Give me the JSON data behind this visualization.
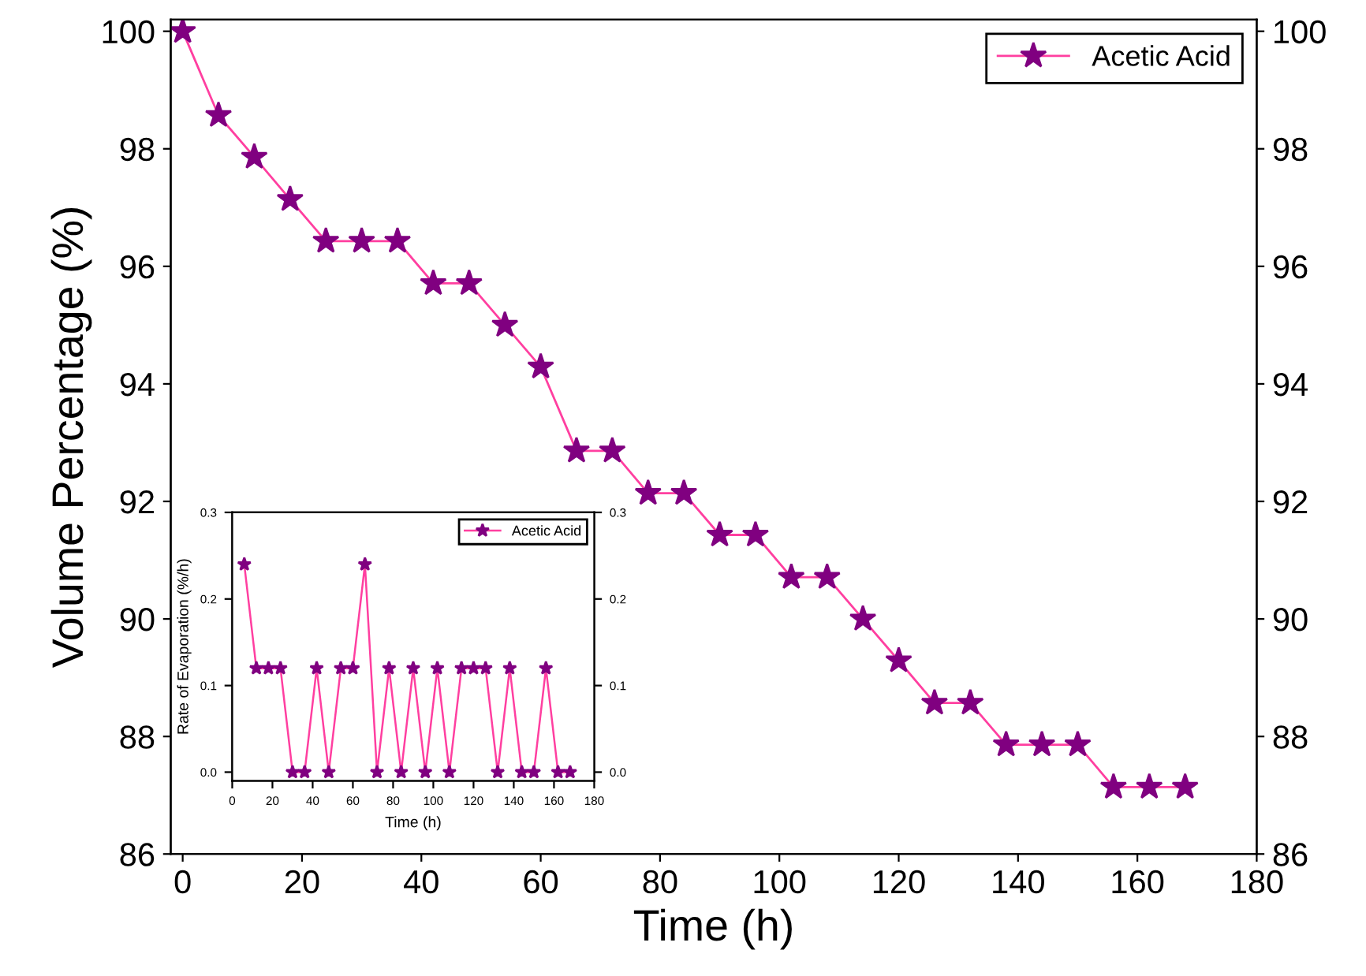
{
  "chart_data": [
    {
      "type": "line",
      "xlabel": "Time (h)",
      "ylabel": "Volume Percentage (%)",
      "x": [
        0,
        6,
        12,
        18,
        24,
        30,
        36,
        42,
        48,
        54,
        60,
        66,
        72,
        78,
        84,
        90,
        96,
        102,
        108,
        114,
        120,
        126,
        132,
        138,
        144,
        150,
        156,
        162,
        168
      ],
      "series": [
        {
          "name": "Acetic Acid",
          "color": "#800080",
          "values": [
            100,
            98.57,
            97.86,
            97.14,
            96.43,
            96.43,
            96.43,
            95.71,
            95.71,
            95.0,
            94.29,
            92.86,
            92.86,
            92.14,
            92.14,
            91.43,
            91.43,
            90.71,
            90.71,
            90.0,
            89.29,
            88.57,
            88.57,
            87.86,
            87.86,
            87.86,
            87.14,
            87.14,
            87.14
          ]
        }
      ],
      "xlim": [
        -2,
        180
      ],
      "xticks": [
        0,
        20,
        40,
        60,
        80,
        100,
        120,
        140,
        160,
        180
      ],
      "ylim": [
        86,
        100.2
      ],
      "yticks": [
        86,
        88,
        90,
        92,
        94,
        96,
        98,
        100
      ],
      "y2lim": [
        86,
        100.2
      ],
      "y2ticks": [
        86,
        88,
        90,
        92,
        94,
        96,
        98,
        100
      ],
      "marker": "star",
      "line_style": "solid",
      "legend": "top right",
      "grid": false
    },
    {
      "type": "line",
      "xlabel": "Time (h)",
      "ylabel": "Rate of Evaporation (%/h)",
      "x": [
        6,
        12,
        18,
        24,
        30,
        36,
        42,
        48,
        54,
        60,
        66,
        72,
        78,
        84,
        90,
        96,
        102,
        108,
        114,
        120,
        126,
        132,
        138,
        144,
        150,
        156,
        162,
        168
      ],
      "series": [
        {
          "name": "Acetic Acid",
          "color": "#800080",
          "values": [
            0.24,
            0.12,
            0.12,
            0.12,
            0,
            0,
            0.12,
            0,
            0.12,
            0.12,
            0.24,
            0,
            0.12,
            0,
            0.12,
            0,
            0.12,
            0,
            0.12,
            0.12,
            0.12,
            0,
            0.12,
            0,
            0,
            0.12,
            0,
            0
          ]
        }
      ],
      "xlim": [
        0,
        180
      ],
      "xticks": [
        0,
        20,
        40,
        60,
        80,
        100,
        120,
        140,
        160,
        180
      ],
      "ylim": [
        -0.01,
        0.3
      ],
      "yticks": [
        {
          "value": 0,
          "label": "0.0"
        },
        0.1,
        0.2,
        0.3
      ],
      "y2lim": [
        -0.01,
        0.3
      ],
      "y2ticks": [
        {
          "value": 0,
          "label": "0.0"
        },
        0.1,
        0.2,
        0.3
      ],
      "marker": "star",
      "line_style": "solid",
      "legend": "top right",
      "grid": false
    }
  ]
}
